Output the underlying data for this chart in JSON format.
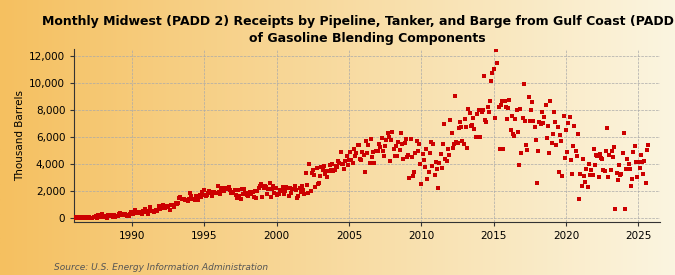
{
  "title": "Monthly Midwest (PADD 2) Receipts by Pipeline, Tanker, and Barge from Gulf Coast (PADD 3)\nof Gasoline Blending Components",
  "ylabel": "Thousand Barrels",
  "source": "Source: U.S. Energy Information Administration",
  "marker_color": "#CC0000",
  "bg_left_color": "#F5C97A",
  "bg_right_color": "#FAF5E0",
  "grid_color": "#AAAAAA",
  "xlim": [
    1986.0,
    2026.5
  ],
  "ylim": [
    -300,
    12500
  ],
  "yticks": [
    0,
    2000,
    4000,
    6000,
    8000,
    10000,
    12000
  ],
  "ytick_labels": [
    "0",
    "2,000",
    "4,000",
    "6,000",
    "8,000",
    "10,000",
    "12,000"
  ],
  "xticks": [
    1990,
    1995,
    2000,
    2005,
    2010,
    2015,
    2020,
    2025
  ]
}
